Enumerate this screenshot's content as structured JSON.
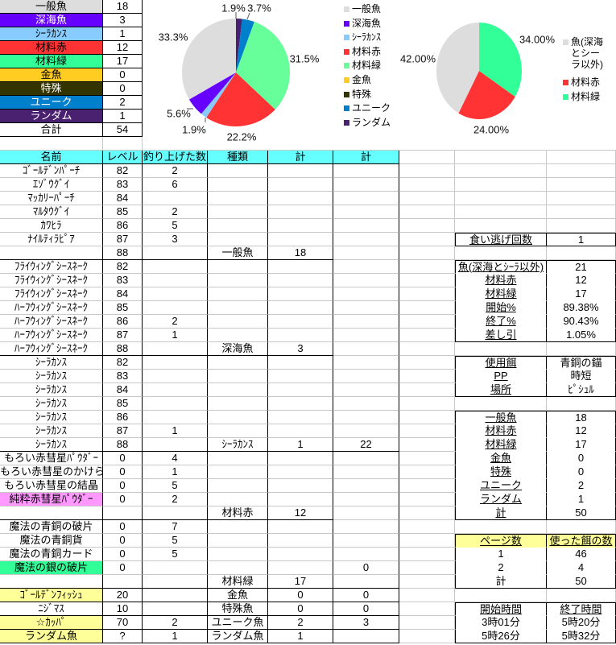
{
  "summary_table": {
    "items": [
      {
        "label": "一般魚",
        "count": "18",
        "color": "#dddddd",
        "text_color": "#000000"
      },
      {
        "label": "深海魚",
        "count": "3",
        "color": "#6600ff",
        "text_color": "#ffffff"
      },
      {
        "label": "ｼｰﾗｶﾝｽ",
        "count": "1",
        "color": "#88ccff",
        "text_color": "#000000"
      },
      {
        "label": "材料赤",
        "count": "12",
        "color": "#ff3333",
        "text_color": "#000000"
      },
      {
        "label": "材料緑",
        "count": "17",
        "color": "#33ff99",
        "text_color": "#000000"
      },
      {
        "label": "金魚",
        "count": "0",
        "color": "#ffcc22",
        "text_color": "#000000"
      },
      {
        "label": "特殊",
        "count": "0",
        "color": "#333300",
        "text_color": "#ffffff"
      },
      {
        "label": "ユニーク",
        "count": "2",
        "color": "#0080cc",
        "text_color": "#ffffff"
      },
      {
        "label": "ランダム",
        "count": "1",
        "color": "#4a2070",
        "text_color": "#ffffff"
      }
    ],
    "total": {
      "label": "合計",
      "count": "54"
    }
  },
  "chart_data": [
    {
      "type": "pie",
      "categories": [
        "一般魚",
        "深海魚",
        "ｼｰﾗｶﾝｽ",
        "材料赤",
        "材料緑",
        "金魚",
        "特殊",
        "ユニーク",
        "ランダム"
      ],
      "values": [
        18,
        3,
        1,
        12,
        17,
        0,
        0,
        2,
        1
      ],
      "labels": [
        "33.3%",
        "5.6%",
        "1.9%",
        "22.2%",
        "31.5%",
        "",
        "",
        "3.7%",
        "1.9%"
      ],
      "colors": [
        "#dddddd",
        "#6600ff",
        "#88ccff",
        "#ff3333",
        "#66ff99",
        "#ffcc22",
        "#333300",
        "#0080cc",
        "#4a2070"
      ],
      "legend": "right"
    },
    {
      "type": "pie",
      "categories": [
        "魚(深海とシーラ以外)",
        "材料赤",
        "材料緑"
      ],
      "values": [
        21,
        12,
        17
      ],
      "labels": [
        "42.00%",
        "24.00%",
        "34.00%"
      ],
      "colors": [
        "#dddddd",
        "#ff3333",
        "#33ff99"
      ],
      "legend": "right"
    }
  ],
  "main_table": {
    "headers": [
      "名前",
      "レベル",
      "釣り上げた数",
      "種類",
      "計",
      "計"
    ],
    "header_color": "#66ffff",
    "rows": [
      {
        "cells": [
          "ｺﾞｰﾙﾃﾞﾝﾊﾟｰﾁ",
          "82",
          "2",
          "",
          "",
          ""
        ]
      },
      {
        "cells": [
          "ｴｿﾞｳｸﾞｲ",
          "83",
          "6",
          "",
          "",
          ""
        ]
      },
      {
        "cells": [
          "ﾏｯｶﾘｰﾊﾟｰﾁ",
          "84",
          "",
          "",
          "",
          ""
        ]
      },
      {
        "cells": [
          "ﾏﾙﾀｳｸﾞｲ",
          "85",
          "2",
          "",
          "",
          ""
        ]
      },
      {
        "cells": [
          "ｶﾜﾋﾗ",
          "86",
          "5",
          "",
          "",
          ""
        ]
      },
      {
        "cells": [
          "ﾅｲﾙﾃｨﾗﾋﾟｱ",
          "87",
          "3",
          "",
          "",
          ""
        ]
      },
      {
        "cells": [
          "",
          "88",
          "",
          "一般魚",
          "18",
          ""
        ]
      },
      {
        "cells": [
          "ﾌﾗｲｳｨﾝｸﾞｼｰｽﾈｰｸ",
          "82",
          "",
          "",
          "",
          ""
        ]
      },
      {
        "cells": [
          "ﾌﾗｲｳｨﾝｸﾞｼｰｽﾈｰｸ",
          "83",
          "",
          "",
          "",
          ""
        ]
      },
      {
        "cells": [
          "ﾌﾗｲｳｨﾝｸﾞｼｰｽﾈｰｸ",
          "84",
          "",
          "",
          "",
          ""
        ]
      },
      {
        "cells": [
          "ﾊｰﾌｳｨﾝｸﾞｼｰｽﾈｰｸ",
          "85",
          "",
          "",
          "",
          ""
        ]
      },
      {
        "cells": [
          "ﾊｰﾌｳｨﾝｸﾞｼｰｽﾈｰｸ",
          "86",
          "2",
          "",
          "",
          ""
        ]
      },
      {
        "cells": [
          "ﾊｰﾌｳｨﾝｸﾞｼｰｽﾈｰｸ",
          "87",
          "1",
          "",
          "",
          ""
        ]
      },
      {
        "cells": [
          "ﾊｰﾌｳｨﾝｸﾞｼｰｽﾈｰｸ",
          "88",
          "",
          "深海魚",
          "3",
          ""
        ]
      },
      {
        "cells": [
          "ｼｰﾗｶﾝｽ",
          "82",
          "",
          "",
          "",
          ""
        ]
      },
      {
        "cells": [
          "ｼｰﾗｶﾝｽ",
          "83",
          "",
          "",
          "",
          ""
        ]
      },
      {
        "cells": [
          "ｼｰﾗｶﾝｽ",
          "84",
          "",
          "",
          "",
          ""
        ]
      },
      {
        "cells": [
          "ｼｰﾗｶﾝｽ",
          "85",
          "",
          "",
          "",
          ""
        ]
      },
      {
        "cells": [
          "ｼｰﾗｶﾝｽ",
          "86",
          "",
          "",
          "",
          ""
        ]
      },
      {
        "cells": [
          "ｼｰﾗｶﾝｽ",
          "87",
          "1",
          "",
          "",
          ""
        ]
      },
      {
        "cells": [
          "ｼｰﾗｶﾝｽ",
          "88",
          "",
          "ｼｰﾗｶﾝｽ",
          "1",
          "22"
        ]
      },
      {
        "cells": [
          "もろい赤彗星ﾊﾟｳﾀﾞｰ",
          "0",
          "4",
          "",
          "",
          ""
        ]
      },
      {
        "cells": [
          "もろい赤彗星のかけら",
          "0",
          "1",
          "",
          "",
          ""
        ]
      },
      {
        "cells": [
          "もろい赤彗星の結晶",
          "0",
          "5",
          "",
          "",
          ""
        ]
      },
      {
        "cells": [
          "純粋赤彗星ﾊﾟｳﾀﾞｰ",
          "0",
          "2",
          "",
          "",
          ""
        ],
        "name_bg": "#ff99ff"
      },
      {
        "cells": [
          "",
          "",
          "",
          "材料赤",
          "12",
          ""
        ]
      },
      {
        "cells": [
          "魔法の青銅の破片",
          "0",
          "7",
          "",
          "",
          ""
        ]
      },
      {
        "cells": [
          "魔法の青銅貨",
          "0",
          "5",
          "",
          "",
          ""
        ]
      },
      {
        "cells": [
          "魔法の青銅カード",
          "0",
          "5",
          "",
          "",
          ""
        ]
      },
      {
        "cells": [
          "魔法の銀の破片",
          "0",
          "",
          "",
          "",
          "0"
        ],
        "name_bg": "#33ff99"
      },
      {
        "cells": [
          "",
          "",
          "",
          "材料緑",
          "17",
          ""
        ]
      },
      {
        "cells": [
          "ｺﾞｰﾙﾃﾞﾝﾌｨｯｼｭ",
          "20",
          "",
          "金魚",
          "0",
          "0"
        ],
        "name_bg": "#ffff99"
      },
      {
        "cells": [
          "ﾆｼﾞﾏｽ",
          "10",
          "",
          "特殊魚",
          "0",
          "0"
        ]
      },
      {
        "cells": [
          "☆ｶｯﾊﾟ",
          "70",
          "2",
          "ユニーク魚",
          "2",
          "3"
        ],
        "name_bg": "#ffff99"
      },
      {
        "cells": [
          "ランダム魚",
          "?",
          "1",
          "ランダム魚",
          "1",
          ""
        ],
        "name_bg": "#ffff99"
      }
    ]
  },
  "right_panel": {
    "escape": [
      {
        "label": "食い逃げ回数",
        "value": "1"
      }
    ],
    "ratio": [
      {
        "label": "魚(深海とｼｰﾗ以外)",
        "value": "21"
      },
      {
        "label": "材料赤",
        "value": "12"
      },
      {
        "label": "材料緑",
        "value": "17"
      },
      {
        "label": "開始%",
        "value": "89.38%"
      },
      {
        "label": "終了%",
        "value": "90.43%"
      },
      {
        "label": "差し引",
        "value": "1.05%"
      }
    ],
    "settings": [
      {
        "label": "使用餌",
        "value": "青銅の錨"
      },
      {
        "label": "PP",
        "value": "時短"
      },
      {
        "label": "場所",
        "value": "ﾋﾟｼｭﾙ"
      }
    ],
    "counts": [
      {
        "label": "一般魚",
        "value": "18"
      },
      {
        "label": "材料赤",
        "value": "12"
      },
      {
        "label": "材料緑",
        "value": "17"
      },
      {
        "label": "金魚",
        "value": "0"
      },
      {
        "label": "特殊",
        "value": "0"
      },
      {
        "label": "ユニーク",
        "value": "2"
      },
      {
        "label": "ランダム",
        "value": "1"
      },
      {
        "label": "計",
        "value": "50"
      }
    ],
    "pages": [
      {
        "label": "ページ数",
        "value": "使った餌の数"
      },
      {
        "label": "1",
        "value": "46"
      },
      {
        "label": "2",
        "value": "4"
      },
      {
        "label": "計",
        "value": "50"
      }
    ],
    "pages_header_color": "#ffff99",
    "times": [
      {
        "label": "開始時間",
        "value": "終了時間"
      },
      {
        "label": "3時01分",
        "value": "5時20分"
      },
      {
        "label": "5時26分",
        "value": "5時32分"
      }
    ]
  }
}
